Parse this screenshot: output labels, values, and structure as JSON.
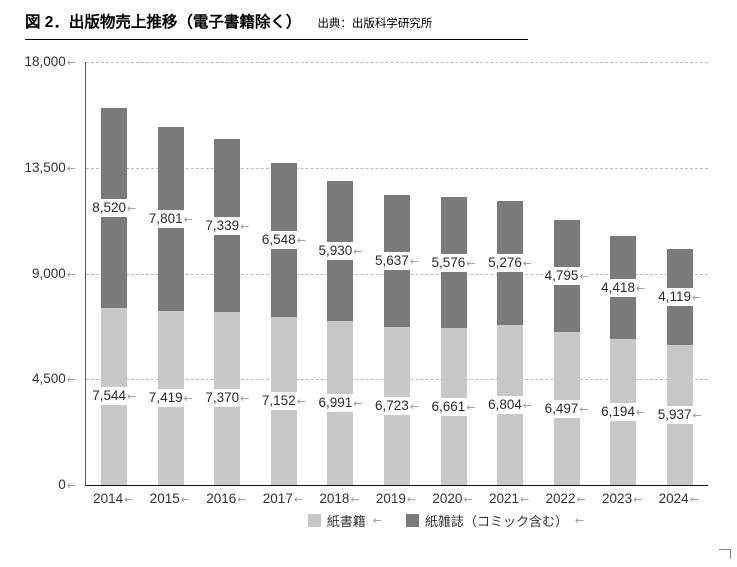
{
  "header": {
    "title": "図 2．出版物売上推移（電子書籍除く）",
    "source": "出典：出版科学研究所"
  },
  "formatting_mark": "←",
  "colors": {
    "books_bar": "#c8c8c8",
    "magazines_bar": "#7a7a7a",
    "gridline": "#bcbcbc",
    "axis": "#111111"
  },
  "chart_data": {
    "type": "bar",
    "stacked": true,
    "title": "出版物売上推移（電子書籍除く）",
    "categories": [
      "2014",
      "2015",
      "2016",
      "2017",
      "2018",
      "2019",
      "2020",
      "2021",
      "2022",
      "2023",
      "2024"
    ],
    "series": [
      {
        "name": "紙書籍",
        "color": "#c8c8c8",
        "values": [
          7544,
          7419,
          7370,
          7152,
          6991,
          6723,
          6661,
          6804,
          6497,
          6194,
          5937
        ],
        "labels": [
          "7,544",
          "7,419",
          "7,370",
          "7,152",
          "6,991",
          "6,723",
          "6,661",
          "6,804",
          "6,497",
          "6,194",
          "5,937"
        ]
      },
      {
        "name": "紙雑誌（コミック含む）",
        "color": "#7a7a7a",
        "values": [
          8520,
          7801,
          7339,
          6548,
          5930,
          5637,
          5576,
          5276,
          4795,
          4418,
          4119
        ],
        "labels": [
          "8,520",
          "7,801",
          "7,339",
          "6,548",
          "5,930",
          "5,637",
          "5,576",
          "5,276",
          "4,795",
          "4,418",
          "4,119"
        ]
      }
    ],
    "ylim": [
      0,
      18000
    ],
    "yticks": [
      0,
      4500,
      9000,
      13500,
      18000
    ],
    "ytick_labels": [
      "0",
      "4,500",
      "9,000",
      "13,500",
      "18,000"
    ],
    "grid": "horizontal-dashed",
    "legend_position": "bottom"
  }
}
